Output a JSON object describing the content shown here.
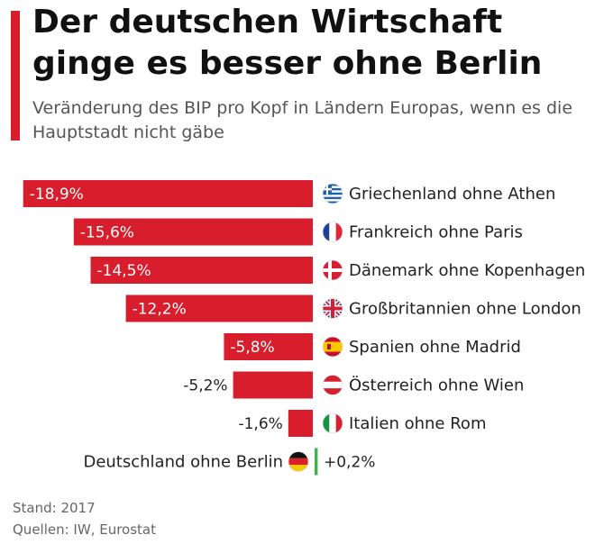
{
  "header": {
    "title": "Der deutschen Wirtschaft ginge es besser ohne Berlin",
    "subtitle": "Veränderung des BIP pro Kopf in Ländern Europas, wenn es die Hauptstadt nicht gäbe"
  },
  "footer": {
    "stand": "Stand: 2017",
    "sources": "Quellen: IW, Eurostat"
  },
  "colors": {
    "accent": "#d81e2c",
    "negative": "#d81e2c",
    "positive": "#3cb54a"
  },
  "chart_data": {
    "type": "bar",
    "orientation": "horizontal",
    "unit": "%",
    "categories": [
      "Griechenland ohne Athen",
      "Frankreich ohne Paris",
      "Dänemark ohne Kopenhagen",
      "Großbritannien ohne London",
      "Spanien ohne Madrid",
      "Österreich ohne Wien",
      "Italien ohne Rom",
      "Deutschland ohne Berlin"
    ],
    "values": [
      -18.9,
      -15.6,
      -14.5,
      -12.2,
      -5.8,
      -5.2,
      -1.6,
      0.2
    ],
    "value_labels": [
      "-18,9%",
      "-15,6%",
      "-14,5%",
      "-12,2%",
      "-5,8%",
      "-5,2%",
      "-1,6%",
      "+0,2%"
    ],
    "flags": [
      "greece-flag",
      "france-flag",
      "denmark-flag",
      "uk-flag",
      "spain-flag",
      "austria-flag",
      "italy-flag",
      "germany-flag"
    ],
    "xlim": [
      -19.3,
      0.2
    ],
    "grid": false
  }
}
